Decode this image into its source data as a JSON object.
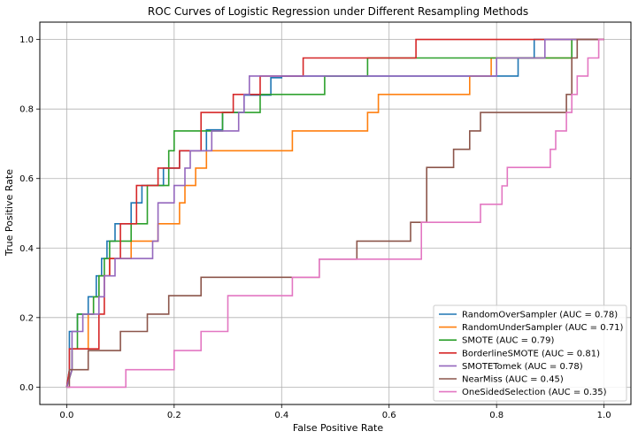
{
  "chart_data": {
    "type": "line",
    "title": "ROC Curves of Logistic Regression under Different Resampling Methods",
    "xlabel": "False Positive Rate",
    "ylabel": "True Positive Rate",
    "xlim": [
      -0.05,
      1.05
    ],
    "ylim": [
      -0.05,
      1.05
    ],
    "xticks": [
      "0.0",
      "0.2",
      "0.4",
      "0.6",
      "0.8",
      "1.0"
    ],
    "yticks": [
      "0.0",
      "0.2",
      "0.4",
      "0.6",
      "0.8",
      "1.0"
    ],
    "grid": true,
    "legend_position": "lower-right",
    "series": [
      {
        "name": "RandomOverSampler (AUC = 0.78)",
        "color": "#1f77b4",
        "points": [
          [
            0,
            0
          ],
          [
            0.005,
            0.05
          ],
          [
            0.005,
            0.16
          ],
          [
            0.02,
            0.16
          ],
          [
            0.02,
            0.21
          ],
          [
            0.04,
            0.21
          ],
          [
            0.04,
            0.26
          ],
          [
            0.055,
            0.26
          ],
          [
            0.055,
            0.32
          ],
          [
            0.065,
            0.32
          ],
          [
            0.065,
            0.37
          ],
          [
            0.075,
            0.37
          ],
          [
            0.075,
            0.42
          ],
          [
            0.09,
            0.42
          ],
          [
            0.09,
            0.47
          ],
          [
            0.12,
            0.47
          ],
          [
            0.12,
            0.53
          ],
          [
            0.14,
            0.53
          ],
          [
            0.14,
            0.58
          ],
          [
            0.18,
            0.58
          ],
          [
            0.18,
            0.63
          ],
          [
            0.21,
            0.63
          ],
          [
            0.21,
            0.68
          ],
          [
            0.26,
            0.68
          ],
          [
            0.26,
            0.74
          ],
          [
            0.29,
            0.74
          ],
          [
            0.29,
            0.79
          ],
          [
            0.33,
            0.79
          ],
          [
            0.33,
            0.84
          ],
          [
            0.38,
            0.84
          ],
          [
            0.38,
            0.89
          ],
          [
            0.4,
            0.89
          ],
          [
            0.4,
            0.895
          ],
          [
            0.84,
            0.895
          ],
          [
            0.84,
            0.947
          ],
          [
            0.87,
            0.947
          ],
          [
            0.87,
            1.0
          ],
          [
            1.0,
            1.0
          ]
        ]
      },
      {
        "name": "RandomUnderSampler (AUC = 0.71)",
        "color": "#ff7f0e",
        "points": [
          [
            0,
            0
          ],
          [
            0.01,
            0.05
          ],
          [
            0.01,
            0.11
          ],
          [
            0.04,
            0.11
          ],
          [
            0.04,
            0.21
          ],
          [
            0.05,
            0.21
          ],
          [
            0.05,
            0.26
          ],
          [
            0.06,
            0.26
          ],
          [
            0.06,
            0.32
          ],
          [
            0.08,
            0.32
          ],
          [
            0.08,
            0.37
          ],
          [
            0.12,
            0.37
          ],
          [
            0.12,
            0.42
          ],
          [
            0.17,
            0.42
          ],
          [
            0.17,
            0.47
          ],
          [
            0.21,
            0.47
          ],
          [
            0.21,
            0.53
          ],
          [
            0.22,
            0.53
          ],
          [
            0.22,
            0.58
          ],
          [
            0.24,
            0.58
          ],
          [
            0.24,
            0.63
          ],
          [
            0.26,
            0.63
          ],
          [
            0.26,
            0.68
          ],
          [
            0.42,
            0.68
          ],
          [
            0.42,
            0.737
          ],
          [
            0.56,
            0.737
          ],
          [
            0.56,
            0.79
          ],
          [
            0.58,
            0.79
          ],
          [
            0.58,
            0.842
          ],
          [
            0.75,
            0.842
          ],
          [
            0.75,
            0.895
          ],
          [
            0.79,
            0.895
          ],
          [
            0.79,
            0.947
          ],
          [
            0.94,
            0.947
          ],
          [
            0.94,
            1.0
          ],
          [
            1.0,
            1.0
          ]
        ]
      },
      {
        "name": "SMOTE (AUC = 0.79)",
        "color": "#2ca02c",
        "points": [
          [
            0,
            0
          ],
          [
            0.01,
            0.05
          ],
          [
            0.01,
            0.11
          ],
          [
            0.02,
            0.11
          ],
          [
            0.02,
            0.21
          ],
          [
            0.05,
            0.21
          ],
          [
            0.05,
            0.26
          ],
          [
            0.06,
            0.26
          ],
          [
            0.06,
            0.32
          ],
          [
            0.07,
            0.32
          ],
          [
            0.07,
            0.37
          ],
          [
            0.08,
            0.37
          ],
          [
            0.08,
            0.42
          ],
          [
            0.12,
            0.42
          ],
          [
            0.12,
            0.47
          ],
          [
            0.15,
            0.47
          ],
          [
            0.15,
            0.58
          ],
          [
            0.19,
            0.58
          ],
          [
            0.19,
            0.68
          ],
          [
            0.2,
            0.68
          ],
          [
            0.2,
            0.737
          ],
          [
            0.29,
            0.737
          ],
          [
            0.29,
            0.79
          ],
          [
            0.36,
            0.79
          ],
          [
            0.36,
            0.842
          ],
          [
            0.48,
            0.842
          ],
          [
            0.48,
            0.895
          ],
          [
            0.56,
            0.895
          ],
          [
            0.56,
            0.947
          ],
          [
            0.94,
            0.947
          ],
          [
            0.94,
            1.0
          ],
          [
            1.0,
            1.0
          ]
        ]
      },
      {
        "name": "BorderlineSMOTE (AUC = 0.81)",
        "color": "#d62728",
        "points": [
          [
            0,
            0
          ],
          [
            0.005,
            0.05
          ],
          [
            0.005,
            0.11
          ],
          [
            0.06,
            0.11
          ],
          [
            0.06,
            0.21
          ],
          [
            0.07,
            0.21
          ],
          [
            0.07,
            0.32
          ],
          [
            0.08,
            0.32
          ],
          [
            0.08,
            0.37
          ],
          [
            0.1,
            0.37
          ],
          [
            0.1,
            0.47
          ],
          [
            0.13,
            0.47
          ],
          [
            0.13,
            0.58
          ],
          [
            0.17,
            0.58
          ],
          [
            0.17,
            0.63
          ],
          [
            0.21,
            0.63
          ],
          [
            0.21,
            0.68
          ],
          [
            0.25,
            0.68
          ],
          [
            0.25,
            0.79
          ],
          [
            0.31,
            0.79
          ],
          [
            0.31,
            0.842
          ],
          [
            0.36,
            0.842
          ],
          [
            0.36,
            0.895
          ],
          [
            0.44,
            0.895
          ],
          [
            0.44,
            0.947
          ],
          [
            0.65,
            0.947
          ],
          [
            0.65,
            1.0
          ],
          [
            1.0,
            1.0
          ]
        ]
      },
      {
        "name": "SMOTETomek (AUC = 0.78)",
        "color": "#9467bd",
        "points": [
          [
            0,
            0
          ],
          [
            0.01,
            0.05
          ],
          [
            0.01,
            0.16
          ],
          [
            0.03,
            0.16
          ],
          [
            0.03,
            0.21
          ],
          [
            0.06,
            0.21
          ],
          [
            0.06,
            0.26
          ],
          [
            0.07,
            0.26
          ],
          [
            0.07,
            0.32
          ],
          [
            0.09,
            0.32
          ],
          [
            0.09,
            0.37
          ],
          [
            0.16,
            0.37
          ],
          [
            0.16,
            0.42
          ],
          [
            0.17,
            0.42
          ],
          [
            0.17,
            0.47
          ],
          [
            0.17,
            0.53
          ],
          [
            0.2,
            0.53
          ],
          [
            0.2,
            0.58
          ],
          [
            0.22,
            0.58
          ],
          [
            0.22,
            0.63
          ],
          [
            0.23,
            0.63
          ],
          [
            0.23,
            0.68
          ],
          [
            0.27,
            0.68
          ],
          [
            0.27,
            0.737
          ],
          [
            0.32,
            0.737
          ],
          [
            0.32,
            0.79
          ],
          [
            0.33,
            0.79
          ],
          [
            0.33,
            0.842
          ],
          [
            0.34,
            0.842
          ],
          [
            0.34,
            0.895
          ],
          [
            0.8,
            0.895
          ],
          [
            0.8,
            0.947
          ],
          [
            0.89,
            0.947
          ],
          [
            0.89,
            1.0
          ],
          [
            1.0,
            1.0
          ]
        ]
      },
      {
        "name": "NearMiss (AUC = 0.45)",
        "color": "#8c564b",
        "points": [
          [
            0,
            0
          ],
          [
            0.005,
            0.0
          ],
          [
            0.005,
            0.05
          ],
          [
            0.04,
            0.05
          ],
          [
            0.04,
            0.105
          ],
          [
            0.1,
            0.105
          ],
          [
            0.1,
            0.16
          ],
          [
            0.15,
            0.16
          ],
          [
            0.15,
            0.21
          ],
          [
            0.19,
            0.21
          ],
          [
            0.19,
            0.263
          ],
          [
            0.25,
            0.263
          ],
          [
            0.25,
            0.316
          ],
          [
            0.47,
            0.316
          ],
          [
            0.47,
            0.368
          ],
          [
            0.54,
            0.368
          ],
          [
            0.54,
            0.42
          ],
          [
            0.64,
            0.42
          ],
          [
            0.64,
            0.474
          ],
          [
            0.67,
            0.474
          ],
          [
            0.67,
            0.526
          ],
          [
            0.67,
            0.632
          ],
          [
            0.72,
            0.632
          ],
          [
            0.72,
            0.684
          ],
          [
            0.75,
            0.684
          ],
          [
            0.75,
            0.737
          ],
          [
            0.77,
            0.737
          ],
          [
            0.77,
            0.79
          ],
          [
            0.93,
            0.79
          ],
          [
            0.93,
            0.842
          ],
          [
            0.94,
            0.842
          ],
          [
            0.94,
            0.947
          ],
          [
            0.95,
            0.947
          ],
          [
            0.95,
            1.0
          ],
          [
            1.0,
            1.0
          ]
        ]
      },
      {
        "name": "OneSidedSelection (AUC = 0.35)",
        "color": "#e377c2",
        "points": [
          [
            0,
            0
          ],
          [
            0.11,
            0.0
          ],
          [
            0.11,
            0.05
          ],
          [
            0.2,
            0.05
          ],
          [
            0.2,
            0.105
          ],
          [
            0.25,
            0.105
          ],
          [
            0.25,
            0.16
          ],
          [
            0.3,
            0.16
          ],
          [
            0.3,
            0.263
          ],
          [
            0.42,
            0.263
          ],
          [
            0.42,
            0.316
          ],
          [
            0.47,
            0.316
          ],
          [
            0.47,
            0.368
          ],
          [
            0.66,
            0.368
          ],
          [
            0.66,
            0.474
          ],
          [
            0.77,
            0.474
          ],
          [
            0.77,
            0.526
          ],
          [
            0.81,
            0.526
          ],
          [
            0.81,
            0.579
          ],
          [
            0.82,
            0.579
          ],
          [
            0.82,
            0.632
          ],
          [
            0.9,
            0.632
          ],
          [
            0.9,
            0.684
          ],
          [
            0.91,
            0.684
          ],
          [
            0.91,
            0.737
          ],
          [
            0.93,
            0.737
          ],
          [
            0.93,
            0.79
          ],
          [
            0.94,
            0.79
          ],
          [
            0.94,
            0.842
          ],
          [
            0.95,
            0.842
          ],
          [
            0.95,
            0.895
          ],
          [
            0.97,
            0.895
          ],
          [
            0.97,
            0.947
          ],
          [
            0.99,
            0.947
          ],
          [
            0.99,
            1.0
          ],
          [
            1.0,
            1.0
          ]
        ]
      }
    ]
  }
}
